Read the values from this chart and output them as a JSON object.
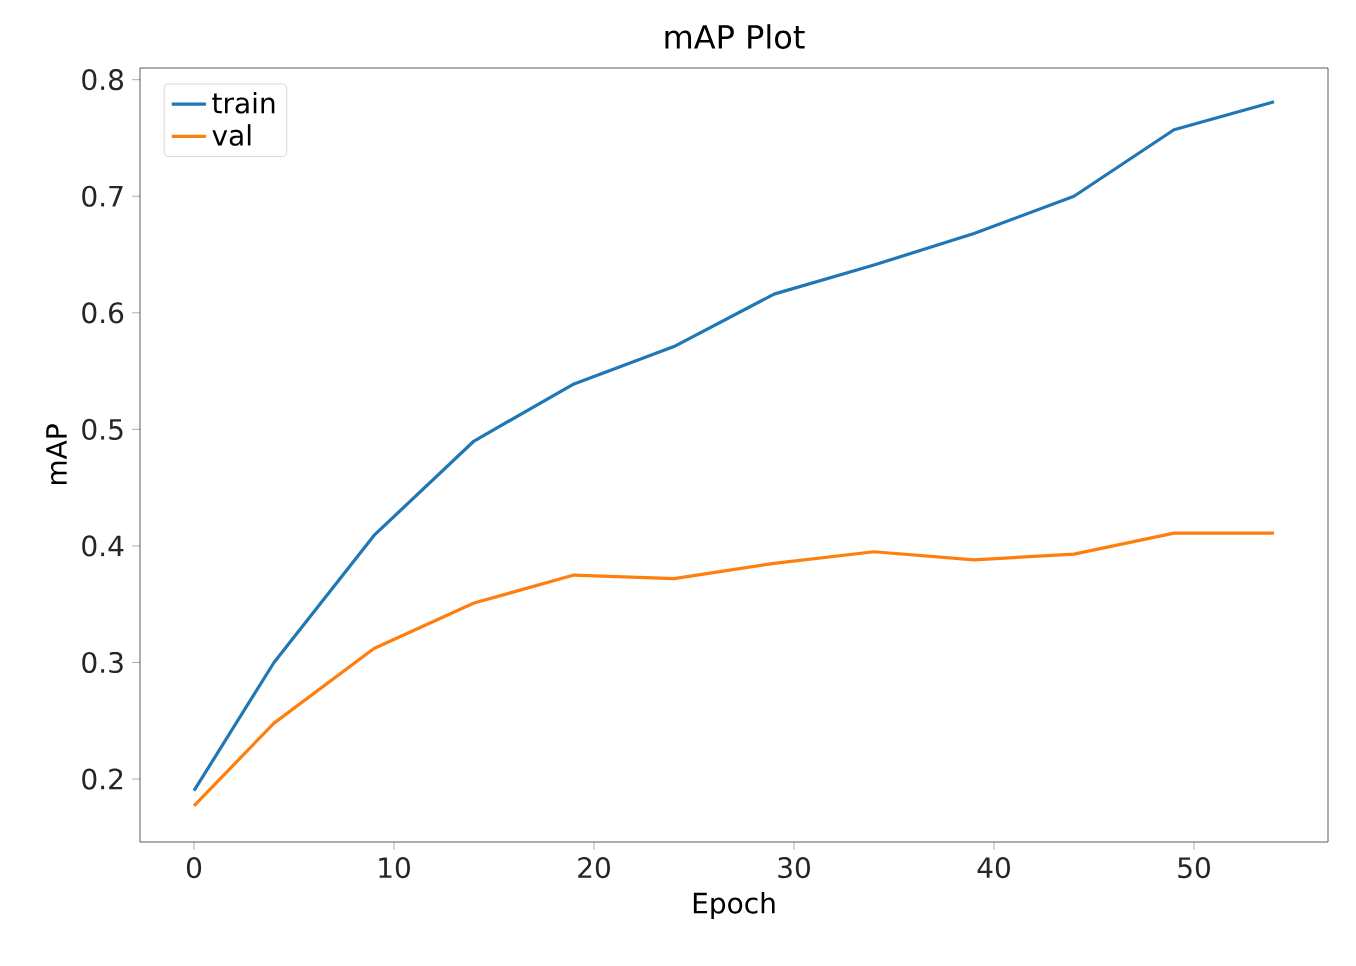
{
  "chart_data": {
    "type": "line",
    "title": "mAP Plot",
    "xlabel": "Epoch",
    "ylabel": "mAP",
    "x": [
      0,
      4,
      9,
      14,
      19,
      24,
      29,
      34,
      39,
      44,
      49,
      54
    ],
    "series": [
      {
        "name": "train",
        "color": "#1f77b4",
        "values": [
          0.19,
          0.3,
          0.409,
          0.49,
          0.539,
          0.571,
          0.616,
          0.641,
          0.668,
          0.7,
          0.757,
          0.781
        ]
      },
      {
        "name": "val",
        "color": "#ff7f0e",
        "values": [
          0.177,
          0.248,
          0.312,
          0.351,
          0.375,
          0.372,
          0.385,
          0.395,
          0.388,
          0.393,
          0.411,
          0.411
        ]
      }
    ],
    "xlim": [
      -2.7,
      56.7
    ],
    "ylim": [
      0.146,
      0.81
    ],
    "xticks": [
      0,
      10,
      20,
      30,
      40,
      50
    ],
    "yticks": [
      0.2,
      0.3,
      0.4,
      0.5,
      0.6,
      0.7,
      0.8
    ],
    "legend": "top left",
    "grid": false,
    "marker": "none",
    "line_style": "solid"
  }
}
